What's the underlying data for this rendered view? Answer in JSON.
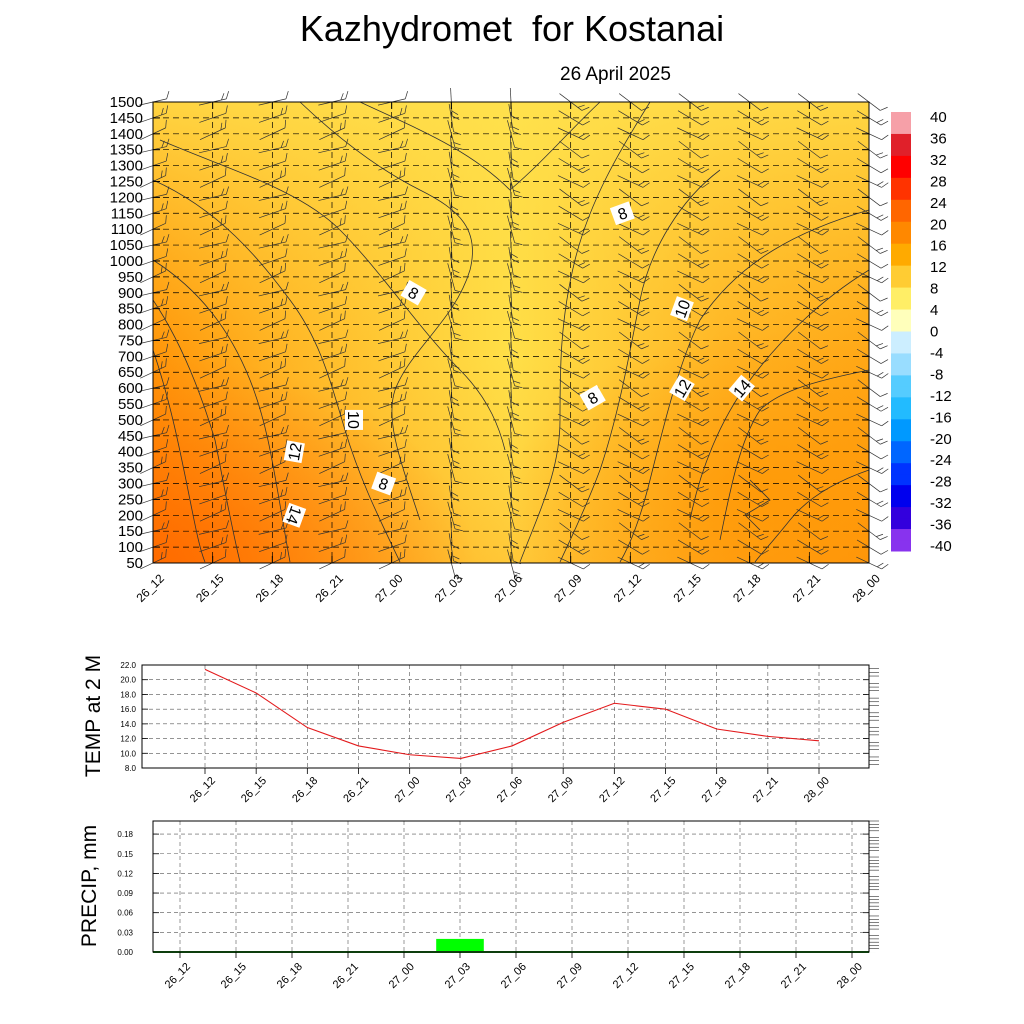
{
  "title": "Kazhydromet  for Kostanai",
  "date": "26 April 2025",
  "colors": {
    "temp_line": "#e31a1c",
    "precip_bar": "#00ff00",
    "field_warm": "#ff6f00",
    "field_mild": "#ffe14d"
  },
  "chart_data": [
    {
      "type": "heatmap",
      "title": "",
      "xlabel": "",
      "ylabel": "",
      "x": [
        "26_12",
        "26_15",
        "26_18",
        "26_21",
        "27_00",
        "27_03",
        "27_06",
        "27_09",
        "27_12",
        "27_15",
        "27_18",
        "27_21",
        "28_00"
      ],
      "y_ticks": [
        50,
        100,
        150,
        200,
        250,
        300,
        350,
        400,
        450,
        500,
        550,
        600,
        650,
        700,
        750,
        800,
        850,
        900,
        950,
        1000,
        1050,
        1100,
        1150,
        1200,
        1250,
        1300,
        1350,
        1400,
        1450,
        1500
      ],
      "y_tick_labels": [
        "50",
        "100",
        "150",
        "200",
        "250",
        "300",
        "350",
        "400",
        "450",
        "500",
        "550",
        "600",
        "650",
        "700",
        "750",
        "800",
        "850",
        "900",
        "950",
        "1000",
        "1050",
        "1100",
        "1150",
        "1200",
        "1250",
        "1300",
        "1350",
        "1400",
        "1450",
        "1500"
      ],
      "ylim": [
        50,
        1500
      ],
      "contour_labels": [
        {
          "text": "8",
          "x": "27_00",
          "y": 900
        },
        {
          "text": "8",
          "x": "27_00",
          "y": 300
        },
        {
          "text": "8",
          "x": "27_09",
          "y": 570
        },
        {
          "text": "8",
          "x": "27_12",
          "y": 1150
        },
        {
          "text": "10",
          "x": "26_21",
          "y": 500
        },
        {
          "text": "10",
          "x": "27_15",
          "y": 850
        },
        {
          "text": "12",
          "x": "26_18",
          "y": 400
        },
        {
          "text": "12",
          "x": "27_15",
          "y": 600
        },
        {
          "text": "14",
          "x": "26_18",
          "y": 200
        },
        {
          "text": "14",
          "x": "27_18",
          "y": 600
        }
      ],
      "colorbar": {
        "labels": [
          "40",
          "36",
          "32",
          "28",
          "24",
          "20",
          "16",
          "12",
          "8",
          "4",
          "0",
          "-4",
          "-8",
          "-12",
          "-16",
          "-20",
          "-24",
          "-28",
          "-32",
          "-36",
          "-40"
        ],
        "range": [
          -40,
          40
        ]
      }
    },
    {
      "type": "line",
      "ylabel": "TEMP at 2 M",
      "x": [
        "26_12",
        "26_15",
        "26_18",
        "26_21",
        "27_00",
        "27_03",
        "27_06",
        "27_09",
        "27_12",
        "27_15",
        "27_18",
        "27_21",
        "28_00"
      ],
      "values": [
        21.4,
        18.2,
        13.5,
        11.0,
        9.8,
        9.3,
        11.0,
        14.2,
        16.8,
        16.0,
        13.3,
        12.3,
        11.7
      ],
      "y_tick_labels": [
        "8.0",
        "10.0",
        "12.0",
        "14.0",
        "16.0",
        "18.0",
        "20.0",
        "22.0"
      ],
      "ylim": [
        8,
        22
      ]
    },
    {
      "type": "bar",
      "ylabel": "PRECIP, mm",
      "categories": [
        "26_12",
        "26_15",
        "26_18",
        "26_21",
        "27_00",
        "27_03",
        "27_06",
        "27_09",
        "27_12",
        "27_15",
        "27_18",
        "27_21",
        "28_00"
      ],
      "values": [
        0,
        0,
        0,
        0,
        0,
        0.02,
        0,
        0,
        0,
        0,
        0,
        0,
        0
      ],
      "y_tick_labels": [
        "0.00",
        "0.03",
        "0.06",
        "0.09",
        "0.12",
        "0.15",
        "0.18"
      ],
      "ylim": [
        0,
        0.2
      ]
    }
  ]
}
